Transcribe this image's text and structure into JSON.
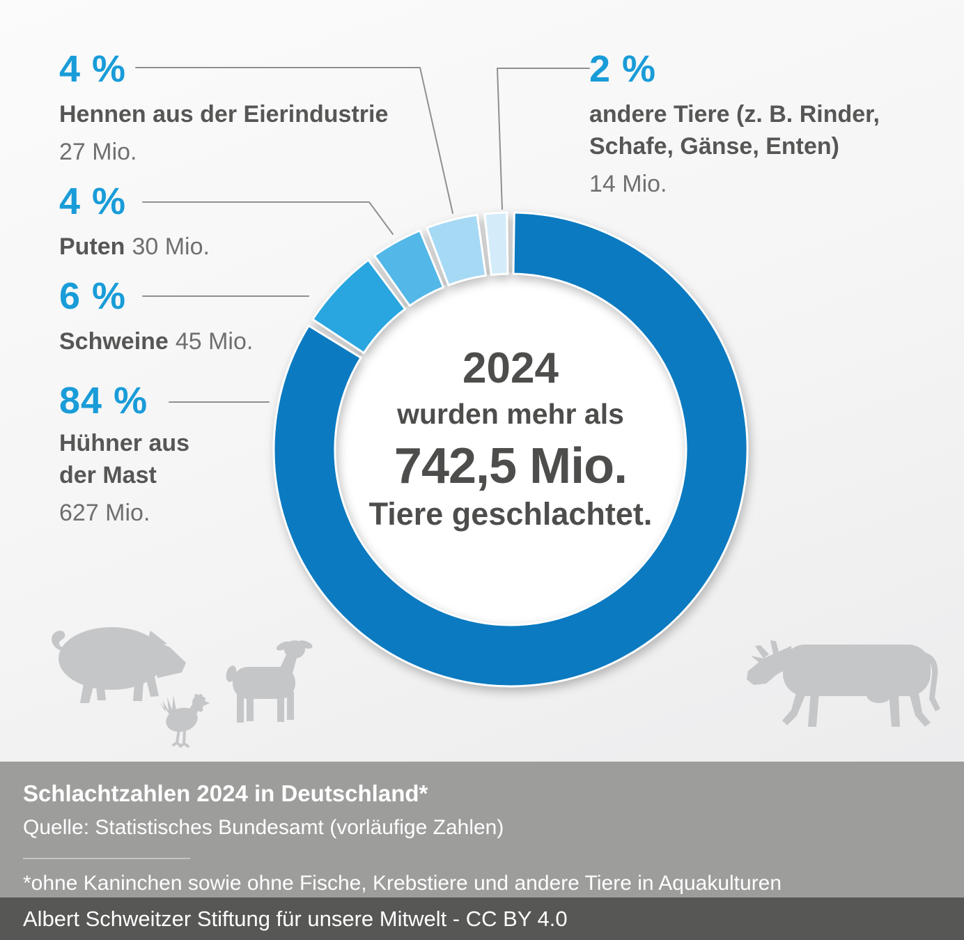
{
  "chart_data": {
    "type": "pie",
    "variant": "donut",
    "title": "Schlachtzahlen 2024 in Deutschland*",
    "start_angle_deg": 0,
    "clockwise": true,
    "gap_deg": 1.8,
    "legend_position": "outside-callouts",
    "segments": [
      {
        "name": "Hühner aus der Mast",
        "percent": 84,
        "percent_label": "84 %",
        "amount_label": "627 Mio.",
        "color": "#0b7ac0"
      },
      {
        "name": "Schweine",
        "percent": 6,
        "percent_label": "6 %",
        "amount_label": "45 Mio.",
        "color": "#29a5df"
      },
      {
        "name": "Puten",
        "percent": 4,
        "percent_label": "4 %",
        "amount_label": "30 Mio.",
        "color": "#53b7e7"
      },
      {
        "name": "Hennen aus der Eierindustrie",
        "percent": 4,
        "percent_label": "4 %",
        "amount_label": "27 Mio.",
        "color": "#a6d9f4"
      },
      {
        "name": "andere Tiere (z. B. Rinder, Schafe, Gänse, Enten)",
        "percent": 2,
        "percent_label": "2 %",
        "amount_label": "14 Mio.",
        "color": "#d4ecfa"
      }
    ],
    "center": {
      "year": "2024",
      "line2": "wurden mehr als",
      "total": "742,5 Mio.",
      "line4": "Tiere geschlachtet."
    }
  },
  "callouts": {
    "hennen": {
      "percent": "4 %",
      "line1": "Hennen aus der Eierindustrie",
      "amount": "27 Mio."
    },
    "puten": {
      "percent": "4 %",
      "name": "Puten",
      "amount": "30 Mio."
    },
    "schweine": {
      "percent": "6 %",
      "name": "Schweine",
      "amount": "45 Mio."
    },
    "huehner": {
      "percent": "84 %",
      "line1": "Hühner aus",
      "line2": "der Mast",
      "amount": "627 Mio."
    },
    "andere": {
      "percent": "2 %",
      "line1": "andere Tiere (z. B. Rinder,",
      "line2": "Schafe, Gänse, Enten)",
      "amount": "14 Mio."
    }
  },
  "footer": {
    "title": "Schlachtzahlen 2024 in Deutschland*",
    "source": "Quelle: Statistisches Bundesamt (vorläufige Zahlen)",
    "footnote": "*ohne Kaninchen sowie ohne Fische, Krebstiere und andere Tiere in Aquakulturen"
  },
  "credit": {
    "text": "Albert Schweitzer Stiftung für unsere Mitwelt - CC BY 4.0"
  },
  "colors": {
    "accent_blue": "#199cd8",
    "dark_text": "#565655",
    "muted_text": "#6f6f6e",
    "leader_line": "#8f8f8e",
    "footer_bg": "#9d9d9c",
    "credit_bg": "#575756",
    "silhouette": "#c5c6c8",
    "center_text": "#4d4d4c"
  }
}
